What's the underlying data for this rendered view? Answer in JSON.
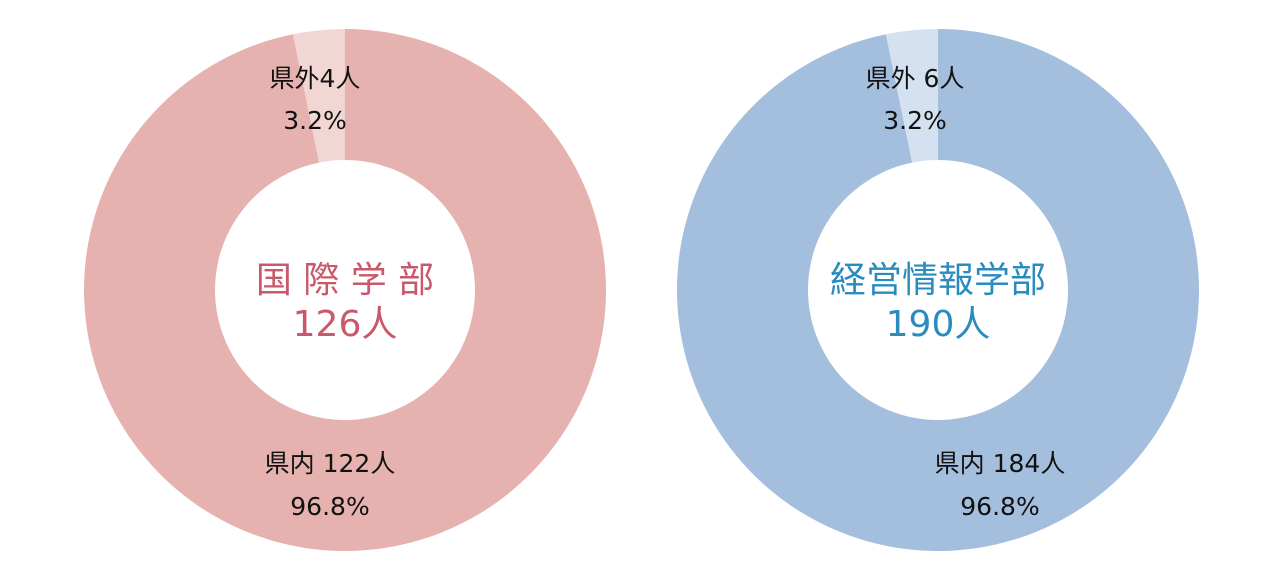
{
  "chart_data": [
    {
      "type": "pie",
      "title": "国 際 学 部",
      "subtitle": "126人",
      "title_color": "#c8586a",
      "categories": [
        "県外4人",
        "県内 122人"
      ],
      "values": [
        3.2,
        96.8
      ],
      "value_labels": [
        "3.2%",
        "96.8%"
      ],
      "colors": [
        "#f2d6d4",
        "#e6b2af"
      ]
    },
    {
      "type": "pie",
      "title": "経営情報学部",
      "subtitle": "190人",
      "title_color": "#2a8bbf",
      "categories": [
        "県外 6人",
        "県内 184人"
      ],
      "values": [
        3.2,
        96.8
      ],
      "value_labels": [
        "3.2%",
        "96.8%"
      ],
      "colors": [
        "#d4e1f1",
        "#a4bedd"
      ]
    }
  ]
}
